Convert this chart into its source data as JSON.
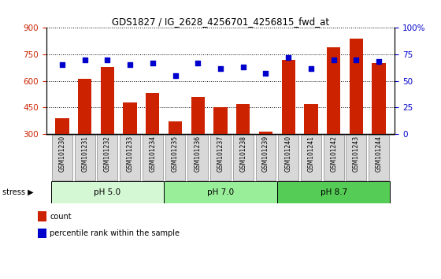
{
  "title": "GDS1827 / IG_2628_4256701_4256815_fwd_at",
  "samples": [
    "GSM101230",
    "GSM101231",
    "GSM101232",
    "GSM101233",
    "GSM101234",
    "GSM101235",
    "GSM101236",
    "GSM101237",
    "GSM101238",
    "GSM101239",
    "GSM101240",
    "GSM101241",
    "GSM101242",
    "GSM101243",
    "GSM101244"
  ],
  "counts": [
    390,
    610,
    680,
    480,
    530,
    370,
    510,
    450,
    470,
    315,
    720,
    470,
    790,
    840,
    700
  ],
  "percentiles": [
    65,
    70,
    70,
    65,
    67,
    55,
    67,
    62,
    63,
    57,
    72,
    62,
    70,
    70,
    68
  ],
  "ylim_left": [
    300,
    900
  ],
  "ylim_right": [
    0,
    100
  ],
  "yticks_left": [
    300,
    450,
    600,
    750,
    900
  ],
  "yticks_right": [
    0,
    25,
    50,
    75,
    100
  ],
  "groups": [
    {
      "label": "pH 5.0",
      "start": 0,
      "end": 5,
      "color": "#d4f7d4"
    },
    {
      "label": "pH 7.0",
      "start": 5,
      "end": 10,
      "color": "#99ee99"
    },
    {
      "label": "pH 8.7",
      "start": 10,
      "end": 15,
      "color": "#55cc55"
    }
  ],
  "bar_color": "#cc2200",
  "dot_color": "#0000cc",
  "stress_label": "stress",
  "bar_width": 0.6,
  "grid_color": "black",
  "background_color": "#d8d8d8",
  "plot_bg": "white",
  "left_label_color": "#cc2200",
  "right_label_color": "#0000cc",
  "legend_items": [
    {
      "color": "#cc2200",
      "label": "count"
    },
    {
      "color": "#0000cc",
      "label": "percentile rank within the sample"
    }
  ]
}
